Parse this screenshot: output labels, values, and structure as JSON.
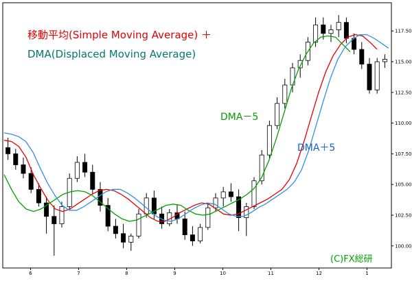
{
  "title": {
    "line1": "移動平均(Simple Moving Average) ＋",
    "line2": "DMA(Displaced Moving Average)"
  },
  "annotations": {
    "dma_minus": "DMA－5",
    "dma_plus": "DMA＋5",
    "credit": "(C)FX総研"
  },
  "colors": {
    "sma": "#e60000",
    "dma_minus": "#00a000",
    "dma_plus": "#2f8fe6",
    "candle": "#000000"
  },
  "chart_data": {
    "type": "candlestick",
    "title": "移動平均(Simple Moving Average) ＋ DMA(Displaced Moving Average)",
    "x_tick_labels": [
      "6",
      "7",
      "8",
      "9",
      "10",
      "11",
      "12",
      "1"
    ],
    "y_tick_labels": [
      "100.000",
      "102.500",
      "105.000",
      "107.500",
      "110.000",
      "112.500",
      "115.000",
      "117.500"
    ],
    "ylim": [
      98.2,
      119.8
    ],
    "grid": false,
    "series": [
      {
        "name": "移動平均(Simple Moving Average)",
        "values": [
          108.6,
          108.5,
          108.1,
          107.2,
          105.8,
          104.7,
          103.7,
          103.0,
          102.8,
          103.0,
          103.4,
          103.8,
          104.2,
          104.5,
          104.6,
          104.5,
          104.2,
          103.8,
          103.3,
          102.8,
          102.3,
          102.0,
          102.0,
          102.3,
          102.7,
          103.0,
          103.3,
          103.5,
          103.4,
          103.0,
          102.6,
          102.5,
          102.6,
          102.9,
          103.2,
          103.5,
          103.8,
          104.2,
          104.6,
          105.4,
          106.7,
          108.5,
          110.5,
          112.5,
          114.2,
          115.5,
          116.4,
          117.0,
          117.2,
          117.1,
          116.6,
          116.0
        ]
      },
      {
        "name": "DMA－5",
        "values": [
          105.8,
          104.6,
          103.6,
          103.0,
          102.8,
          103.0,
          103.4,
          103.8,
          104.2,
          104.4,
          104.5,
          104.4,
          104.1,
          103.6,
          103.1,
          102.6,
          102.2,
          102.0,
          102.1,
          102.4,
          102.7,
          103.0,
          103.3,
          103.4,
          103.3,
          102.9,
          102.6,
          102.5,
          102.6,
          102.9,
          103.2,
          103.5,
          103.8,
          104.2,
          104.7,
          105.6,
          107.0,
          108.8,
          110.8,
          112.8,
          114.4,
          115.6,
          116.5,
          117.0,
          117.1,
          117.0,
          116.4,
          115.8
        ]
      },
      {
        "name": "DMA＋5",
        "values": [
          109.2,
          109.1,
          108.9,
          108.5,
          107.6,
          106.3,
          105.1,
          104.1,
          103.3,
          102.9,
          102.9,
          103.2,
          103.6,
          104.0,
          104.4,
          104.6,
          104.6,
          104.3,
          103.9,
          103.4,
          102.9,
          102.4,
          102.1,
          102.0,
          102.2,
          102.6,
          103.0,
          103.3,
          103.5,
          103.4,
          103.0,
          102.6,
          102.4,
          102.4,
          102.7,
          103.1,
          103.4,
          103.8,
          104.2,
          104.6,
          105.2,
          106.2,
          107.8,
          109.8,
          111.8,
          113.7,
          115.2,
          116.2,
          116.8,
          117.2,
          117.2,
          116.9,
          116.5,
          116.1
        ]
      }
    ],
    "candles": [
      [
        108.0,
        108.8,
        107.0,
        107.5
      ],
      [
        107.5,
        107.9,
        106.2,
        106.6
      ],
      [
        106.6,
        107.2,
        105.5,
        105.9
      ],
      [
        105.9,
        106.4,
        104.3,
        104.6
      ],
      [
        104.6,
        105.1,
        103.2,
        103.5
      ],
      [
        103.5,
        104.0,
        101.0,
        102.4
      ],
      [
        102.4,
        103.3,
        99.2,
        101.8
      ],
      [
        101.8,
        103.6,
        101.5,
        103.2
      ],
      [
        103.2,
        105.9,
        103.0,
        105.5
      ],
      [
        105.5,
        107.3,
        105.2,
        106.8
      ],
      [
        106.8,
        107.5,
        105.6,
        106.0
      ],
      [
        106.0,
        106.6,
        104.2,
        104.6
      ],
      [
        104.6,
        105.2,
        102.8,
        103.3
      ],
      [
        103.3,
        103.9,
        101.2,
        101.6
      ],
      [
        101.6,
        102.2,
        100.6,
        101.0
      ],
      [
        101.0,
        101.8,
        99.8,
        100.3
      ],
      [
        100.3,
        101.0,
        99.6,
        100.8
      ],
      [
        100.8,
        103.0,
        100.6,
        102.6
      ],
      [
        102.6,
        104.3,
        102.3,
        103.9
      ],
      [
        103.9,
        104.5,
        102.2,
        102.6
      ],
      [
        102.6,
        103.2,
        101.4,
        101.8
      ],
      [
        101.8,
        103.0,
        101.6,
        102.7
      ],
      [
        102.7,
        103.4,
        101.8,
        102.2
      ],
      [
        102.2,
        102.8,
        100.5,
        100.9
      ],
      [
        100.9,
        101.6,
        100.0,
        100.4
      ],
      [
        100.4,
        101.8,
        100.2,
        101.5
      ],
      [
        101.5,
        103.4,
        101.3,
        103.1
      ],
      [
        103.1,
        104.3,
        102.8,
        103.9
      ],
      [
        103.9,
        104.8,
        103.2,
        104.4
      ],
      [
        104.4,
        105.1,
        103.6,
        104.0
      ],
      [
        104.0,
        104.6,
        101.2,
        102.3
      ],
      [
        102.3,
        103.5,
        100.8,
        103.2
      ],
      [
        103.2,
        105.6,
        103.0,
        105.3
      ],
      [
        105.3,
        107.8,
        105.0,
        107.4
      ],
      [
        107.4,
        110.2,
        107.1,
        109.8
      ],
      [
        109.8,
        112.1,
        109.5,
        111.6
      ],
      [
        111.6,
        113.6,
        111.2,
        113.1
      ],
      [
        113.1,
        114.9,
        112.5,
        114.5
      ],
      [
        114.5,
        115.6,
        113.7,
        115.1
      ],
      [
        115.1,
        117.0,
        114.7,
        116.6
      ],
      [
        116.6,
        118.6,
        116.2,
        118.0
      ],
      [
        118.0,
        118.6,
        116.8,
        117.3
      ],
      [
        117.3,
        118.0,
        116.6,
        117.6
      ],
      [
        117.6,
        118.8,
        117.0,
        118.2
      ],
      [
        118.2,
        118.6,
        116.5,
        116.9
      ],
      [
        116.9,
        117.3,
        115.6,
        116.0
      ],
      [
        116.0,
        116.6,
        114.4,
        114.8
      ],
      [
        114.8,
        115.3,
        112.4,
        112.7
      ],
      [
        112.7,
        115.3,
        112.4,
        115.0
      ],
      [
        115.0,
        115.6,
        114.5,
        115.2
      ]
    ]
  }
}
